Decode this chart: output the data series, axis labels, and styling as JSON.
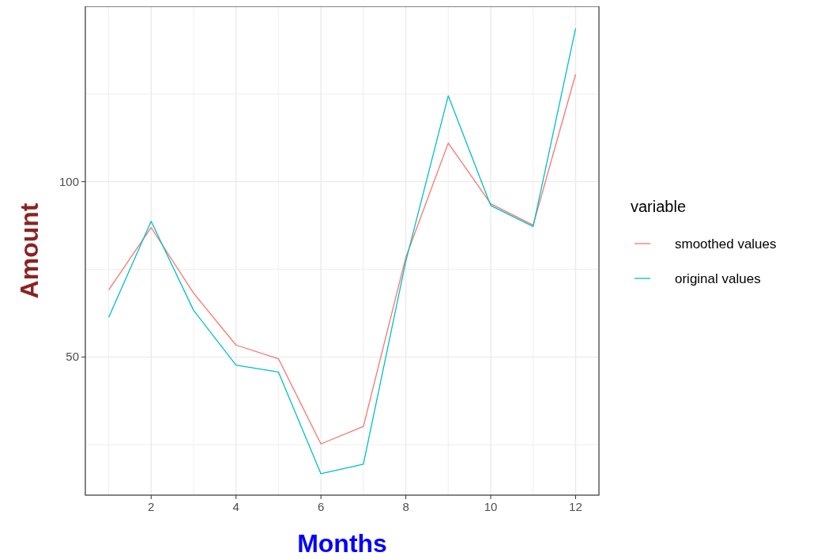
{
  "chart_data": {
    "type": "line",
    "xlabel": "Months",
    "ylabel": "Amount",
    "legend_title": "variable",
    "x": [
      1,
      2,
      3,
      4,
      5,
      6,
      7,
      8,
      9,
      10,
      11,
      12
    ],
    "series": [
      {
        "name": "smoothed values",
        "color": "#f8766d",
        "values": [
          69.1,
          86.9,
          68.2,
          53.4,
          49.5,
          25.2,
          30.2,
          78.4,
          111.0,
          93.7,
          87.6,
          130.6
        ]
      },
      {
        "name": "original values",
        "color": "#00bfc4",
        "values": [
          61.3,
          88.7,
          63.3,
          47.7,
          45.7,
          16.7,
          19.4,
          77.3,
          124.5,
          93.2,
          87.2,
          143.7
        ]
      }
    ],
    "xlim": [
      0.45,
      12.55
    ],
    "xticks": [
      {
        "value": 1,
        "label": null
      },
      2,
      {
        "value": 3,
        "label": null
      },
      4,
      {
        "value": 5,
        "label": null
      },
      6,
      {
        "value": 7,
        "label": null
      },
      8,
      {
        "value": 9,
        "label": null
      },
      10,
      {
        "value": 11,
        "label": null
      },
      12
    ],
    "ylim": [
      10.6,
      150
    ],
    "yticks": [
      {
        "value": 25,
        "label": null
      },
      50,
      {
        "value": 75,
        "label": null
      },
      100,
      {
        "value": 125,
        "label": null
      }
    ],
    "grid": true,
    "legend": "right",
    "marker": "none",
    "line_style": "solid"
  }
}
